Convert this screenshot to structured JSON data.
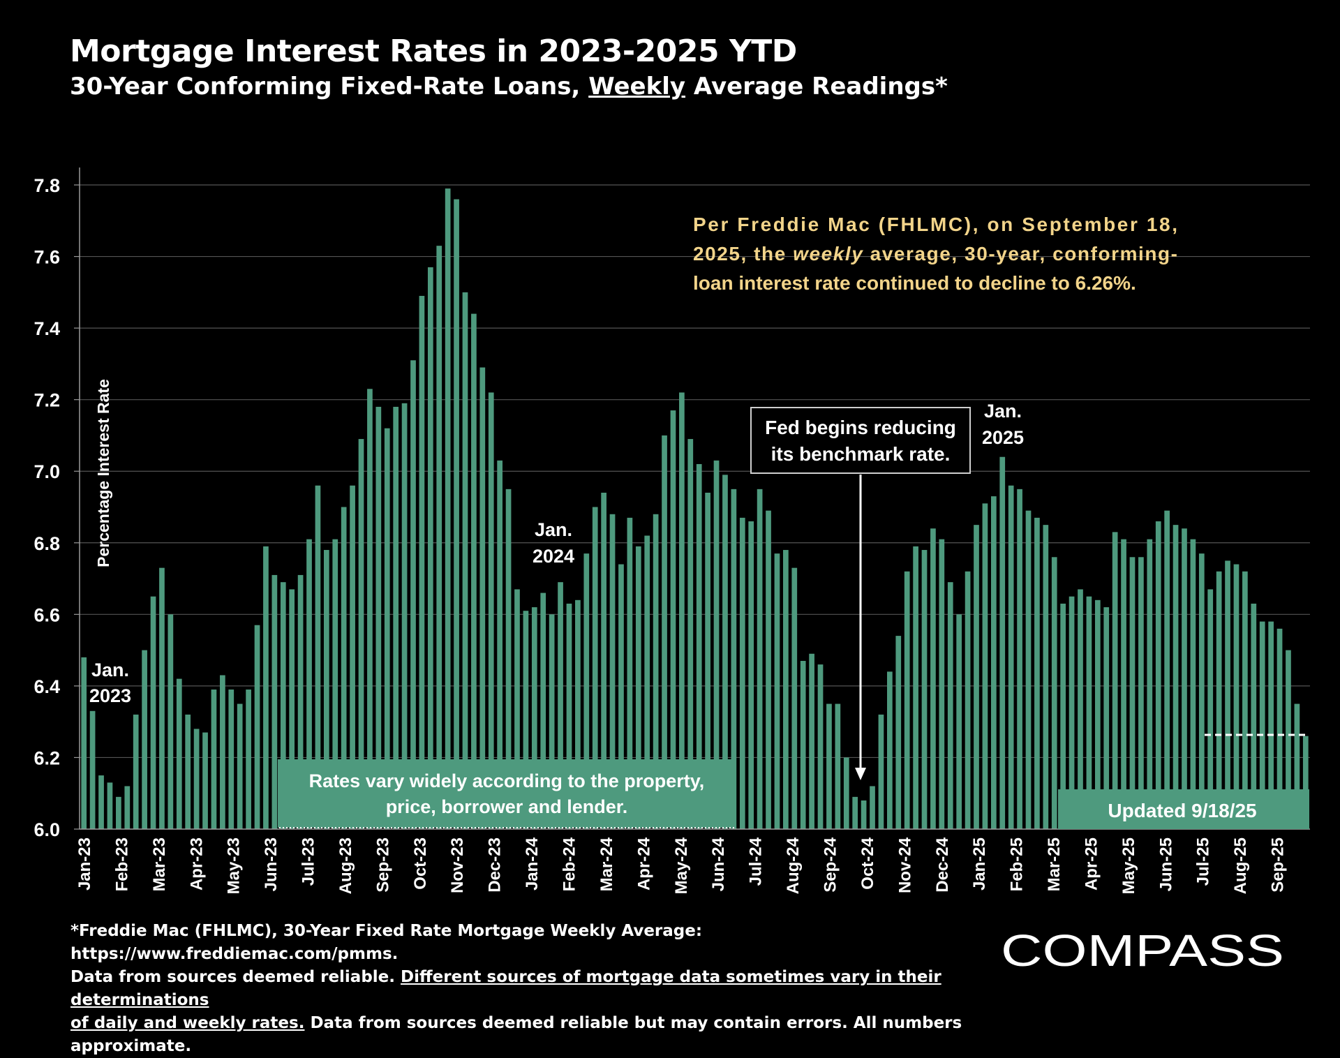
{
  "header": {
    "title": "Mortgage Interest Rates in 2023-2025 YTD",
    "subtitle_pre": "30-Year Conforming Fixed-Rate Loans, ",
    "subtitle_emph": "Weekly",
    "subtitle_post": " Average Readings*"
  },
  "annotations": {
    "freddie_line1": "Per Freddie Mac (FHLMC), on September 18,",
    "freddie_line2_a": "2025, the ",
    "freddie_line2_b": "weekly",
    "freddie_line2_c": " average, 30-year, conforming-",
    "freddie_line3": "loan interest rate continued to decline to 6.26%.",
    "fed_line1": "Fed begins reducing",
    "fed_line2": "its benchmark rate.",
    "jan2023": [
      "Jan.",
      "2023"
    ],
    "jan2024": [
      "Jan.",
      "2024"
    ],
    "jan2025": [
      "Jan.",
      "2025"
    ],
    "rates_vary_line1": "Rates vary widely according to the property,",
    "rates_vary_line2": "price, borrower and lender.",
    "updated": "Updated 9/18/25"
  },
  "footnote": {
    "line1": "*Freddie Mac (FHLMC), 30-Year Fixed Rate Mortgage Weekly Average:  https://www.freddiemac.com/pmms.",
    "line2_a": "Data from sources deemed reliable. ",
    "line2_b": "Different sources of mortgage data sometimes vary in their determinations",
    "line3_a": "of daily and weekly rates.",
    "line3_b": " Data from sources deemed reliable but may contain errors. All numbers approximate."
  },
  "logo_text": "COMPASS",
  "colors": {
    "bar": "#4e9a7e",
    "background": "#000000",
    "annotation_text": "#f2d48a",
    "grid": "#555555"
  },
  "chart_data": {
    "type": "bar",
    "ylabel": "Percentage Interest  Rate",
    "ylim": [
      6.0,
      7.8
    ],
    "yticks": [
      "6.0",
      "6.2",
      "6.4",
      "6.6",
      "6.8",
      "7.0",
      "7.2",
      "7.4",
      "7.6",
      "7.8"
    ],
    "grid": true,
    "xtick_labels": [
      "Jan-23",
      "Feb-23",
      "Mar-23",
      "Apr-23",
      "May-23",
      "Jun-23",
      "Jul-23",
      "Aug-23",
      "Sep-23",
      "Oct-23",
      "Nov-23",
      "Dec-23",
      "Jan-24",
      "Feb-24",
      "Mar-24",
      "Apr-24",
      "May-24",
      "Jun-24",
      "Jul-24",
      "Aug-24",
      "Sep-24",
      "Oct-24",
      "Nov-24",
      "Dec-24",
      "Jan-25",
      "Feb-25",
      "Mar-25",
      "Apr-25",
      "May-25",
      "Jun-25",
      "Jul-25",
      "Aug-25",
      "Sep-25"
    ],
    "series": [
      {
        "values": [
          6.48,
          6.33,
          6.15,
          6.13,
          6.09,
          6.12,
          6.32,
          6.5,
          6.65,
          6.73,
          6.6,
          6.42,
          6.32,
          6.28,
          6.27,
          6.39,
          6.43,
          6.39,
          6.35,
          6.39,
          6.57,
          6.79,
          6.71,
          6.69,
          6.67,
          6.71,
          6.81,
          6.96,
          6.78,
          6.81,
          6.9,
          6.96,
          7.09,
          7.23,
          7.18,
          7.12,
          7.18,
          7.19,
          7.31,
          7.49,
          7.57,
          7.63,
          7.79,
          7.76,
          7.5,
          7.44,
          7.29,
          7.22,
          7.03,
          6.95,
          6.67,
          6.61,
          6.62,
          6.66,
          6.6,
          6.69,
          6.63,
          6.64,
          6.77,
          6.9,
          6.94,
          6.88,
          6.74,
          6.87,
          6.79,
          6.82,
          6.88,
          7.1,
          7.17,
          7.22,
          7.09,
          7.02,
          6.94,
          7.03,
          6.99,
          6.95,
          6.87,
          6.86,
          6.95,
          6.89,
          6.77,
          6.78,
          6.73,
          6.47,
          6.49,
          6.46,
          6.35,
          6.35,
          6.2,
          6.09,
          6.08,
          6.12,
          6.32,
          6.44,
          6.54,
          6.72,
          6.79,
          6.78,
          6.84,
          6.81,
          6.69,
          6.6,
          6.72,
          6.85,
          6.91,
          6.93,
          7.04,
          6.96,
          6.95,
          6.89,
          6.87,
          6.85,
          6.76,
          6.63,
          6.65,
          6.67,
          6.65,
          6.64,
          6.62,
          6.83,
          6.81,
          6.76,
          6.76,
          6.81,
          6.86,
          6.89,
          6.85,
          6.84,
          6.81,
          6.77,
          6.67,
          6.72,
          6.75,
          6.74,
          6.72,
          6.63,
          6.58,
          6.58,
          6.56,
          6.5,
          6.35,
          6.26
        ]
      }
    ]
  }
}
